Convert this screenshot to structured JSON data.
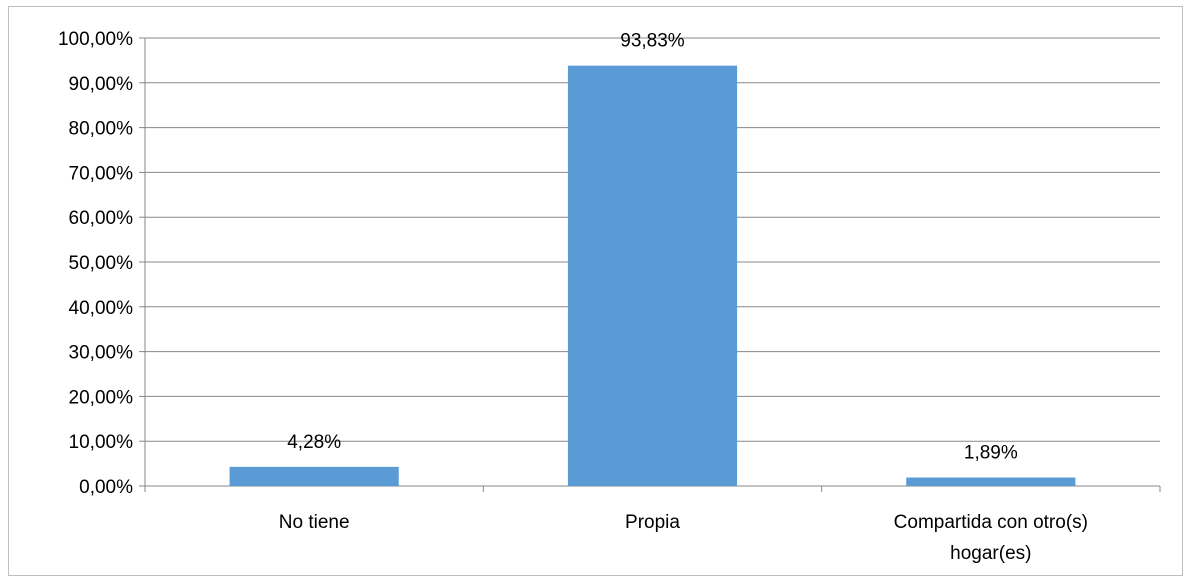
{
  "chart_data": {
    "type": "bar",
    "categories": [
      [
        "No tiene"
      ],
      [
        "Propia"
      ],
      [
        "Compartida con otro(s)",
        "hogar(es)"
      ]
    ],
    "values": [
      4.28,
      93.83,
      1.89
    ],
    "data_labels": [
      "4,28%",
      "93,83%",
      "1,89%"
    ],
    "y_ticks": [
      {
        "value": 0,
        "label": "0,00%"
      },
      {
        "value": 10,
        "label": "10,00%"
      },
      {
        "value": 20,
        "label": "20,00%"
      },
      {
        "value": 30,
        "label": "30,00%"
      },
      {
        "value": 40,
        "label": "40,00%"
      },
      {
        "value": 50,
        "label": "50,00%"
      },
      {
        "value": 60,
        "label": "60,00%"
      },
      {
        "value": 70,
        "label": "70,00%"
      },
      {
        "value": 80,
        "label": "80,00%"
      },
      {
        "value": 90,
        "label": "90,00%"
      },
      {
        "value": 100,
        "label": "100,00%"
      }
    ],
    "ylim": [
      0,
      100
    ],
    "grid": true,
    "legend": "none",
    "bar_color": "#5b9bd5",
    "grid_color": "#878787",
    "axis_color": "#878787"
  }
}
